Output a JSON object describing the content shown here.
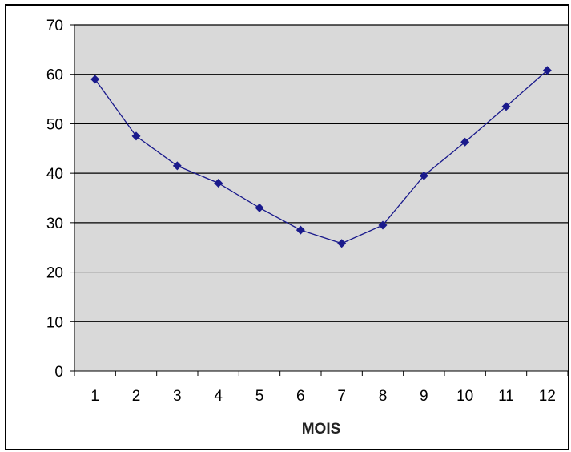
{
  "chart_data": {
    "type": "line",
    "title": "",
    "xlabel": "MOIS",
    "ylabel": "",
    "x": [
      1,
      2,
      3,
      4,
      5,
      6,
      7,
      8,
      9,
      10,
      11,
      12
    ],
    "categories": [
      "1",
      "2",
      "3",
      "4",
      "5",
      "6",
      "7",
      "8",
      "9",
      "10",
      "11",
      "12"
    ],
    "series": [
      {
        "values": [
          59,
          47.5,
          41.5,
          38,
          33,
          28.5,
          25.8,
          29.5,
          39.5,
          46.3,
          53.5,
          60.8
        ],
        "color": "#1a1a8c",
        "marker": "diamond"
      }
    ],
    "ylim": [
      0,
      70
    ],
    "yticks": [
      0,
      10,
      20,
      30,
      40,
      50,
      60,
      70
    ],
    "grid": "horizontal",
    "legend": "none",
    "plot_background": "#d9d9d9",
    "gridline_color": "#000000"
  }
}
